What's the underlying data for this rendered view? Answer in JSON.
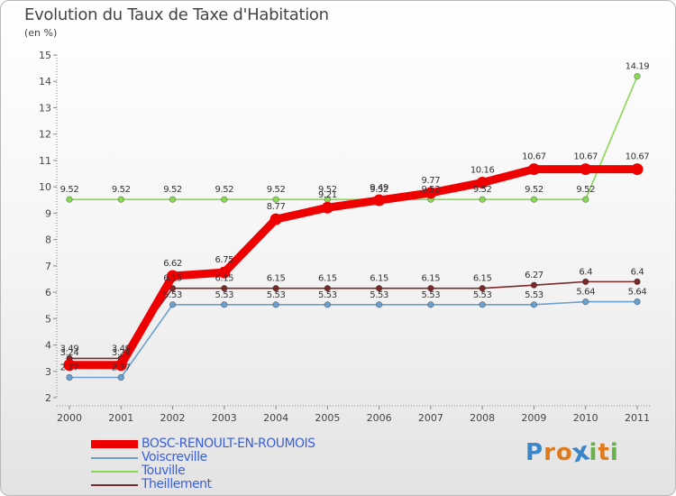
{
  "header": {
    "title": "Evolution du Taux de Taxe d'Habitation",
    "subtitle": "(en %)"
  },
  "brand": {
    "letters": [
      "P",
      "r",
      "o",
      "x",
      "i",
      "t",
      "i"
    ],
    "colors": [
      "#3a86c8",
      "#e07a1f",
      "#e07a1f",
      "#3a86c8",
      "#6ab04c",
      "#e07a1f",
      "#6ab04c"
    ]
  },
  "chart_data": {
    "type": "line",
    "title": "Evolution du Taux de Taxe d'Habitation",
    "ylabel": "(en %)",
    "xlabel": "",
    "x": [
      "2000",
      "2001",
      "2002",
      "2003",
      "2004",
      "2005",
      "2006",
      "2007",
      "2008",
      "2009",
      "2010",
      "2011"
    ],
    "ylim": [
      2,
      15
    ],
    "yticks": [
      "2",
      "3",
      "4",
      "5",
      "6",
      "7",
      "8",
      "9",
      "10",
      "11",
      "12",
      "13",
      "14",
      "15"
    ],
    "grid": false,
    "legend_position": "bottom-left",
    "series": [
      {
        "name": "BOSC-RENOULT-EN-ROUMOIS",
        "color": "#ee0000",
        "values": [
          3.24,
          3.24,
          6.62,
          6.75,
          8.77,
          9.21,
          9.49,
          9.77,
          10.16,
          10.67,
          10.67,
          10.67
        ],
        "labels": [
          "3.24",
          "3.24",
          "6.62",
          "6.75",
          "8.77",
          "9.21",
          "9.49",
          "9.77",
          "10.16",
          "10.67",
          "10.67",
          "10.67"
        ]
      },
      {
        "name": "Voiscreville",
        "color": "#6a9fce",
        "values": [
          2.77,
          2.77,
          5.53,
          5.53,
          5.53,
          5.53,
          5.53,
          5.53,
          5.53,
          5.53,
          5.64,
          5.64
        ],
        "labels": [
          "2.77",
          "2.77",
          "5.53",
          "5.53",
          "5.53",
          "5.53",
          "5.53",
          "5.53",
          "5.53",
          "5.53",
          "5.64",
          "5.64"
        ]
      },
      {
        "name": "Touville",
        "color": "#88d855",
        "values": [
          9.52,
          9.52,
          9.52,
          9.52,
          9.52,
          9.52,
          9.52,
          9.52,
          9.52,
          9.52,
          9.52,
          14.19
        ],
        "labels": [
          "9.52",
          "9.52",
          "9.52",
          "9.52",
          "9.52",
          "9.52",
          "9.52",
          "9.52",
          "9.52",
          "9.52",
          "9.52",
          "14.19"
        ]
      },
      {
        "name": "Theillement",
        "color": "#7a2a2a",
        "values": [
          3.49,
          3.49,
          6.15,
          6.15,
          6.15,
          6.15,
          6.15,
          6.15,
          6.15,
          6.27,
          6.4,
          6.4
        ],
        "labels": [
          "3.49",
          "3.49",
          "6.15",
          "6.15",
          "6.15",
          "6.15",
          "6.15",
          "6.15",
          "6.15",
          "6.27",
          "6.4",
          "6.4"
        ]
      }
    ]
  }
}
